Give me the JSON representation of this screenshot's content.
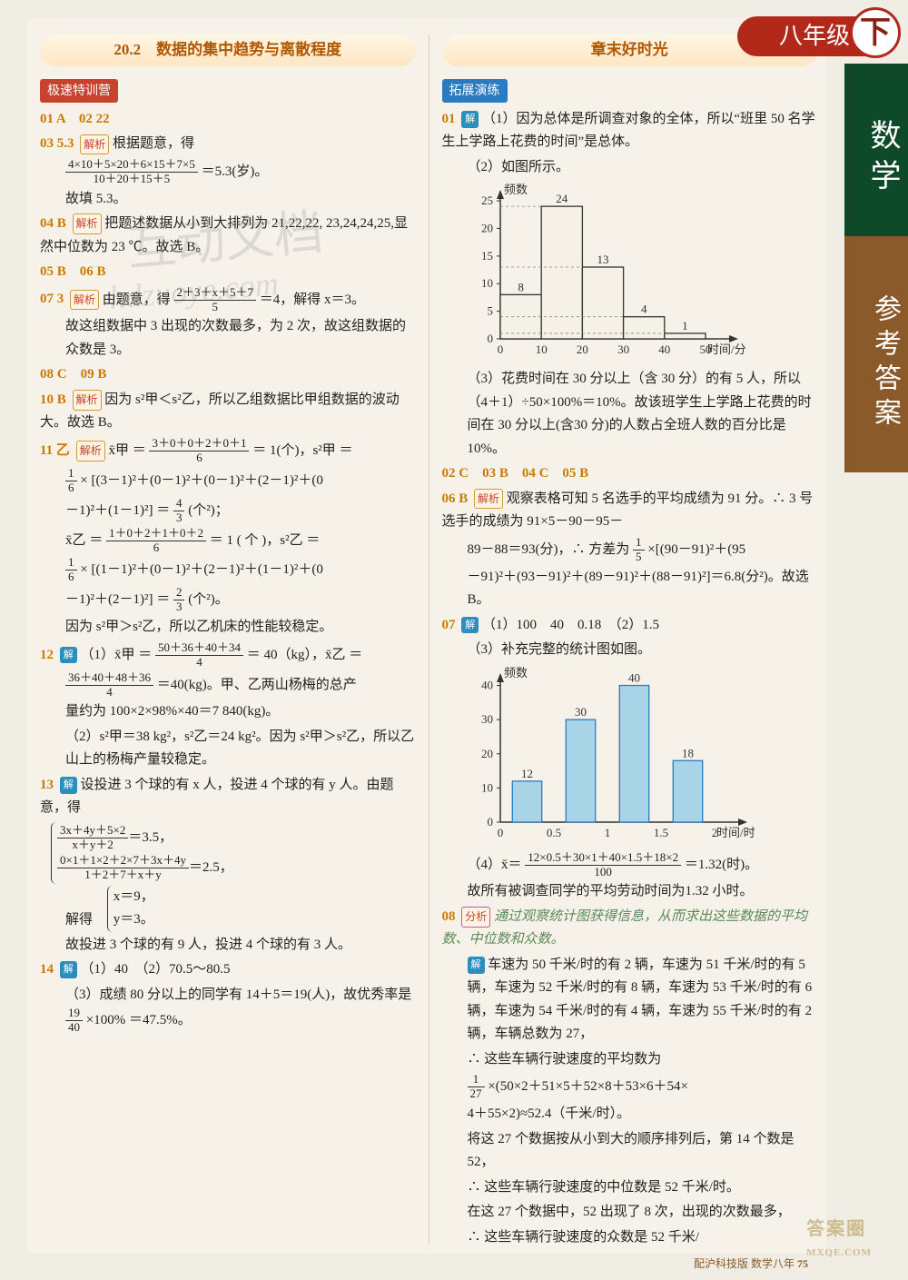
{
  "header": {
    "grade": "八年级",
    "semester": "下",
    "subject": "数学",
    "sidebar": "参考答案"
  },
  "left": {
    "title": "20.2　数据的集中趋势与离散程度",
    "training_tag": "极速特训营",
    "q01_02": "01 A　02 22",
    "q03": {
      "label": "03 5.3",
      "tag": "解析",
      "text1": "根据题意，得",
      "frac_num": "4×10＋5×20＋6×15＋7×5",
      "frac_den": "10＋20＋15＋5",
      "text2": "＝5.3(岁)。",
      "text3": "故填 5.3。"
    },
    "q04": {
      "label": "04 B",
      "tag": "解析",
      "text": "把题述数据从小到大排列为 21,22,22, 23,24,24,25,显然中位数为 23 ℃。故选 B。"
    },
    "q05_06": "05 B　06 B",
    "q07": {
      "label": "07 3",
      "tag": "解析",
      "text1": "由题意，得 ",
      "frac_num": "2＋3＋x＋5＋7",
      "frac_den": "5",
      "text2": "＝4，解得 x＝3。",
      "text3": "故这组数据中 3 出现的次数最多，为 2 次，故这组数据的众数是 3。"
    },
    "q08_09": "08 C　09 B",
    "q10": {
      "label": "10 B",
      "tag": "解析",
      "text": "因为 s²甲＜s²乙，所以乙组数据比甲组数据的波动大。故选 B。"
    },
    "q11": {
      "label": "11 乙",
      "tag": "解析",
      "line1a": "x̄甲 ＝ ",
      "frac1_num": "3＋0＋0＋2＋0＋1",
      "frac1_den": "6",
      "line1b": " ＝ 1(个)，s²甲 ＝",
      "line2a": "× [(3－1)²＋(0－1)²＋(0－1)²＋(2－1)²＋(0",
      "frac2_num": "1",
      "frac2_den": "6",
      "line3": "－1)²＋(1－1)²] ＝ ",
      "frac3_num": "4",
      "frac3_den": "3",
      "line3b": "(个²)；",
      "line4a": "x̄乙 ＝ ",
      "frac4_num": "1＋0＋2＋1＋0＋2",
      "frac4_den": "6",
      "line4b": " ＝ 1 ( 个 )，s²乙 ＝",
      "line5a": "× [(1－1)²＋(0－1)²＋(2－1)²＋(1－1)²＋(0",
      "frac5_num": "1",
      "frac5_den": "6",
      "line6": "－1)²＋(2－1)²] ＝ ",
      "frac6_num": "2",
      "frac6_den": "3",
      "line6b": "(个²)。",
      "line7": "因为 s²甲＞s²乙，所以乙机床的性能较稳定。"
    },
    "q12": {
      "label": "12",
      "sol": "解",
      "line1a": "（1）x̄甲 ＝ ",
      "frac1_num": "50＋36＋40＋34",
      "frac1_den": "4",
      "line1b": " ＝ 40（kg），x̄乙 ＝",
      "line2a": "",
      "frac2_num": "36＋40＋48＋36",
      "frac2_den": "4",
      "line2b": "＝40(kg)。甲、乙两山杨梅的总产",
      "line3": "量约为 100×2×98%×40＝7 840(kg)。",
      "line4": "（2）s²甲＝38 kg²，s²乙＝24 kg²。因为 s²甲＞s²乙，所以乙山上的杨梅产量较稳定。"
    },
    "q13": {
      "label": "13",
      "sol": "解",
      "text1": "设投进 3 个球的有 x 人，投进 4 个球的有 y 人。由题意，得",
      "eq1_num": "3x＋4y＋5×2",
      "eq1_den": "x＋y＋2",
      "eq1_rhs": "＝3.5，",
      "eq2_num": "0×1＋1×2＋2×7＋3x＋4y",
      "eq2_den": "1＋2＋7＋x＋y",
      "eq2_rhs": "＝2.5，",
      "solve": "解得",
      "sol1": "x＝9，",
      "sol2": "y＝3。",
      "text2": "故投进 3 个球的有 9 人，投进 4 个球的有 3 人。"
    },
    "q14": {
      "label": "14",
      "sol": "解",
      "ans": "（1）40　（2）70.5～80.5",
      "text": "（3）成绩 80 分以上的同学有 14＋5＝19(人)，故优秀率是 ",
      "frac_num": "19",
      "frac_den": "40",
      "text2": "×100% ＝47.5%。"
    }
  },
  "right": {
    "title": "章末好时光",
    "expand_tag": "拓展演练",
    "q01": {
      "label": "01",
      "sol": "解",
      "text1": "（1）因为总体是所调查对象的全体，所以“班里 50 名学生上学路上花费的时间”是总体。",
      "text2": "（2）如图所示。",
      "text3": "（3）花费时间在 30 分以上（含 30 分）的有 5 人，所以（4＋1）÷50×100%＝10%。故该班学生上学路上花费的时间在 30 分以上(含30 分)的人数占全班人数的百分比是 10%。",
      "chart": {
        "type": "histogram",
        "ylabel": "频数",
        "xlabel": "时间/分",
        "categories": [
          10,
          20,
          30,
          40,
          50
        ],
        "values": [
          8,
          24,
          13,
          4,
          1
        ],
        "ylim": [
          0,
          26
        ],
        "ytick_step": 5,
        "bar_color": "#f5f1e6",
        "bar_stroke": "#333333",
        "axis_color": "#333333",
        "label_fontsize": 13
      }
    },
    "q02_05": "02 C　03 B　04 C　05 B",
    "q06": {
      "label": "06 B",
      "tag": "解析",
      "text1": "观察表格可知 5 名选手的平均成绩为 91 分。∴ 3 号选手的成绩为 91×5－90－95－",
      "text2": "89－88＝93(分)，∴ 方差为 ",
      "frac_num": "1",
      "frac_den": "5",
      "text3": "×[(90－91)²＋(95",
      "text4": "－91)²＋(93－91)²＋(89－91)²＋(88－91)²]＝6.8(分²)。故选 B。"
    },
    "q07": {
      "label": "07",
      "sol": "解",
      "ans1": "（1）100　40　0.18　（2）1.5",
      "text1": "（3）补充完整的统计图如图。",
      "text2": "（4）x̄＝",
      "frac_num": "12×0.5＋30×1＋40×1.5＋18×2",
      "frac_den": "100",
      "text3": "＝1.32(时)。",
      "text4": "故所有被调查同学的平均劳动时间为1.32 小时。",
      "chart": {
        "type": "histogram",
        "ylabel": "频数",
        "xlabel": "时间/时",
        "categories": [
          0.5,
          1,
          1.5,
          2
        ],
        "values": [
          12,
          30,
          40,
          18
        ],
        "ylim": [
          0,
          42
        ],
        "yticks": [
          0,
          10,
          20,
          30,
          40
        ],
        "bar_color": "#a8d4e8",
        "bar_stroke": "#2a7bbf",
        "axis_color": "#333333",
        "label_fontsize": 13
      }
    },
    "q08": {
      "label": "08",
      "analysis_tag": "分析",
      "analysis": "通过观察统计图获得信息，从而求出这些数据的平均数、中位数和众数。",
      "sol": "解",
      "text1": "车速为 50 千米/时的有 2 辆，车速为 51 千米/时的有 5 辆，车速为 52 千米/时的有 8 辆，车速为 53 千米/时的有 6 辆，车速为 54 千米/时的有 4 辆，车速为 55 千米/时的有 2 辆，车辆总数为 27，",
      "text2": "∴ 这些车辆行驶速度的平均数为",
      "frac_num": "1",
      "frac_den": "27",
      "text3": "×(50×2＋51×5＋52×8＋53×6＋54×",
      "text4": "4＋55×2)≈52.4（千米/时）。",
      "text5": "将这 27 个数据按从小到大的顺序排列后，第 14 个数是 52，",
      "text6": "∴ 这些车辆行驶速度的中位数是 52 千米/时。",
      "text7": "在这 27 个数据中，52 出现了 8 次，出现的次数最多，",
      "text8": "∴ 这些车辆行驶速度的众数是 52 千米/"
    }
  },
  "footer": {
    "text": "配沪科技版 数学八年",
    "page": "75"
  },
  "watermark": {
    "w1": "互动文档",
    "w2": "hdzuoye.com"
  },
  "logo": {
    "main": "答案圈",
    "sub": "MXQE.COM"
  }
}
